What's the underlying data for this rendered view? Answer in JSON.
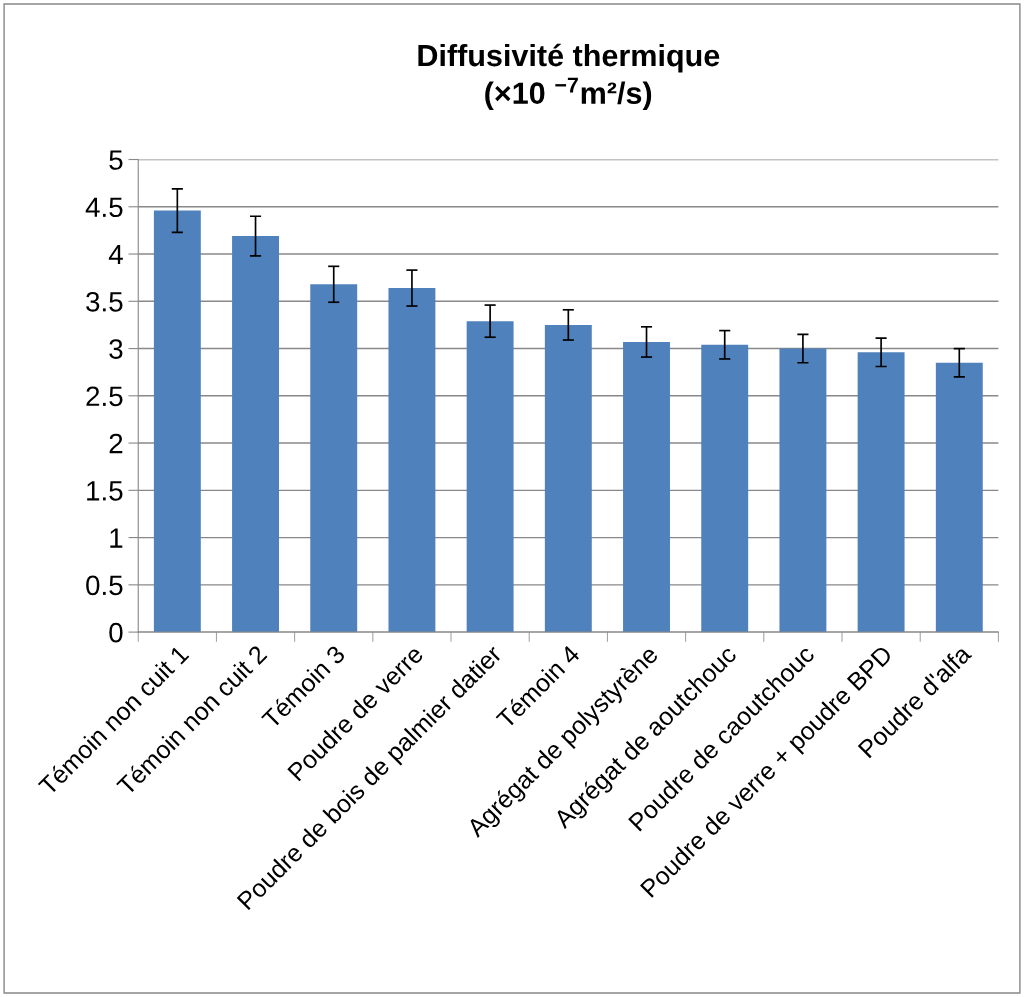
{
  "chart_data": {
    "type": "bar",
    "title": "Diffusivité thermique\n(×10 $^{−7}$m²/s)",
    "categories": [
      "Témoin non cuit 1",
      "Témoin non cuit 2",
      "Témoin 3",
      "Poudre de verre",
      "Poudre de bois de palmier datier",
      "Témoin 4",
      "Agrégat de polystyrène",
      "Agrégat de aoutchouc",
      "Poudre de caoutchouc",
      "Poudre de verre + poudre BPD",
      "Poudre d'alfa"
    ],
    "values": [
      4.46,
      4.19,
      3.68,
      3.64,
      3.29,
      3.25,
      3.07,
      3.04,
      3.0,
      2.96,
      2.85
    ],
    "errors": [
      0.23,
      0.21,
      0.19,
      0.19,
      0.17,
      0.16,
      0.16,
      0.15,
      0.15,
      0.15,
      0.15
    ],
    "color": "#4f81bd",
    "ylim": [
      0,
      5
    ],
    "yticks": [
      0,
      0.5,
      1,
      1.5,
      2,
      2.5,
      3,
      3.5,
      4,
      4.5,
      5
    ],
    "grid": "y"
  }
}
